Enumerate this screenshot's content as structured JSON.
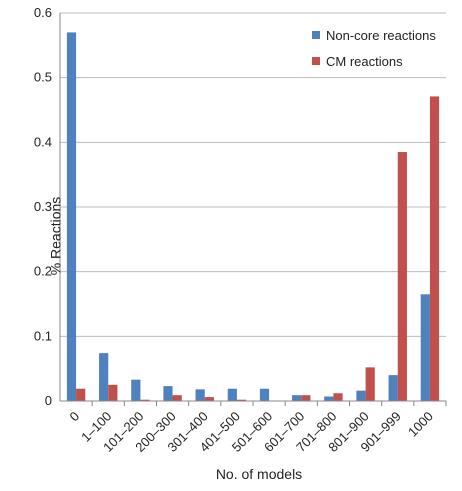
{
  "chart_data": {
    "type": "bar",
    "categories": [
      "0",
      "1–100",
      "101–200",
      "200–300",
      "301–400",
      "401–500",
      "501–600",
      "601–700",
      "701–800",
      "801–900",
      "901–999",
      "1000"
    ],
    "series": [
      {
        "name": "Non-core reactions",
        "color": "#4f81bd",
        "values": [
          0.57,
          0.074,
          0.033,
          0.023,
          0.018,
          0.019,
          0.019,
          0.009,
          0.007,
          0.016,
          0.04,
          0.165
        ]
      },
      {
        "name": "CM reactions",
        "color": "#c0504d",
        "values": [
          0.019,
          0.025,
          0.002,
          0.009,
          0.006,
          0.002,
          0.0,
          0.009,
          0.012,
          0.052,
          0.385,
          0.471
        ]
      }
    ],
    "title": "",
    "xlabel": "No. of models",
    "ylabel": "% Reactions",
    "ylim": [
      0,
      0.6
    ],
    "yticks": [
      "0",
      "0.1",
      "0.2",
      "0.3",
      "0.4",
      "0.5",
      "0.6"
    ],
    "grid": true,
    "legend_position": "top-right"
  }
}
